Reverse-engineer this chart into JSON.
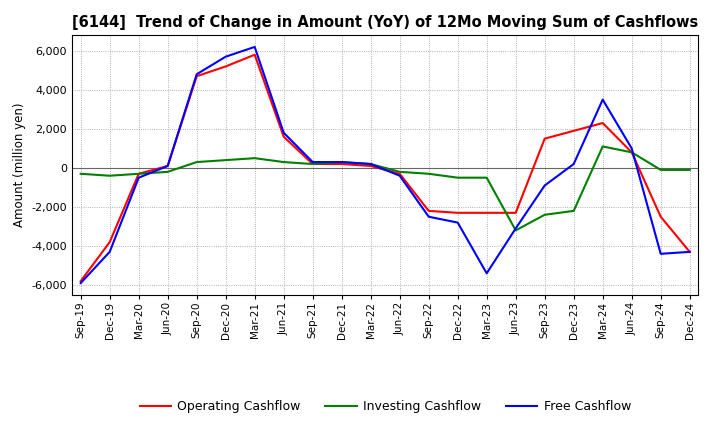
{
  "title": "[6144]  Trend of Change in Amount (YoY) of 12Mo Moving Sum of Cashflows",
  "ylabel": "Amount (million yen)",
  "ylim": [
    -6500,
    6800
  ],
  "yticks": [
    -6000,
    -4000,
    -2000,
    0,
    2000,
    4000,
    6000
  ],
  "x_labels": [
    "Sep-19",
    "Dec-19",
    "Mar-20",
    "Jun-20",
    "Sep-20",
    "Dec-20",
    "Mar-21",
    "Jun-21",
    "Sep-21",
    "Dec-21",
    "Mar-22",
    "Jun-22",
    "Sep-22",
    "Dec-22",
    "Mar-23",
    "Jun-23",
    "Sep-23",
    "Dec-23",
    "Mar-24",
    "Jun-24",
    "Sep-24",
    "Dec-24"
  ],
  "operating": [
    -5800,
    -3800,
    -300,
    100,
    4700,
    5200,
    5800,
    1600,
    200,
    200,
    100,
    -300,
    -2200,
    -2300,
    -2300,
    -2300,
    1500,
    1900,
    2300,
    800,
    -2500,
    -4300
  ],
  "investing": [
    -300,
    -400,
    -300,
    -200,
    300,
    400,
    500,
    300,
    200,
    300,
    200,
    -200,
    -300,
    -500,
    -500,
    -3200,
    -2400,
    -2200,
    1100,
    800,
    -100,
    -100
  ],
  "free": [
    -5900,
    -4300,
    -500,
    100,
    4800,
    5700,
    6200,
    1800,
    300,
    300,
    200,
    -400,
    -2500,
    -2800,
    -5400,
    -3100,
    -900,
    200,
    3500,
    1000,
    -4400,
    -4300
  ],
  "op_color": "#ff0000",
  "inv_color": "#008000",
  "free_color": "#0000ff",
  "bg_color": "#ffffff",
  "grid_color": "#999999",
  "legend_labels": [
    "Operating Cashflow",
    "Investing Cashflow",
    "Free Cashflow"
  ],
  "line_width": 1.5
}
